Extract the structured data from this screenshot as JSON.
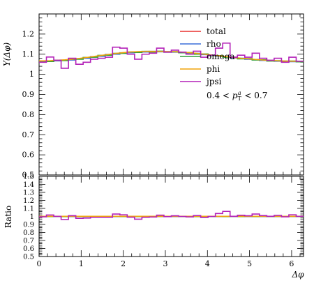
{
  "chart_data": [
    {
      "type": "line",
      "panel": "main",
      "ylabel": "Y(Δφ)",
      "xlim": [
        0,
        6.283
      ],
      "ylim": [
        0.5,
        1.3
      ],
      "yticks": [
        "0.5",
        "0.6",
        "0.7",
        "0.8",
        "0.9",
        "1",
        "1.1",
        "1.2"
      ],
      "legend_position": "top-right",
      "annotation": "0.4 < p_T^a < 0.7",
      "bins": 36,
      "series": [
        {
          "name": "total",
          "color": "#e8312f",
          "step": false,
          "values": [
            1.065,
            1.066,
            1.068,
            1.07,
            1.073,
            1.077,
            1.082,
            1.087,
            1.092,
            1.097,
            1.102,
            1.106,
            1.109,
            1.111,
            1.112,
            1.113,
            1.113,
            1.112,
            1.111,
            1.109,
            1.106,
            1.103,
            1.099,
            1.095,
            1.091,
            1.087,
            1.083,
            1.079,
            1.076,
            1.073,
            1.07,
            1.068,
            1.066,
            1.065,
            1.064,
            1.064
          ]
        },
        {
          "name": "rho",
          "color": "#3a6fd8",
          "step": true,
          "values": [
            1.063,
            1.066,
            1.067,
            1.07,
            1.071,
            1.078,
            1.08,
            1.088,
            1.09,
            1.099,
            1.1,
            1.107,
            1.107,
            1.112,
            1.111,
            1.114,
            1.112,
            1.113,
            1.11,
            1.11,
            1.105,
            1.104,
            1.098,
            1.096,
            1.09,
            1.088,
            1.082,
            1.08,
            1.075,
            1.074,
            1.069,
            1.069,
            1.065,
            1.066,
            1.063,
            1.065
          ]
        },
        {
          "name": "omega",
          "color": "#2e9e3a",
          "step": true,
          "values": [
            1.066,
            1.064,
            1.07,
            1.068,
            1.075,
            1.075,
            1.084,
            1.085,
            1.094,
            1.095,
            1.104,
            1.104,
            1.111,
            1.109,
            1.114,
            1.111,
            1.115,
            1.11,
            1.113,
            1.107,
            1.108,
            1.1,
            1.101,
            1.093,
            1.093,
            1.085,
            1.085,
            1.077,
            1.078,
            1.071,
            1.072,
            1.066,
            1.068,
            1.063,
            1.066,
            1.062
          ]
        },
        {
          "name": "phi",
          "color": "#f0a30a",
          "step": false,
          "values": [
            1.067,
            1.068,
            1.07,
            1.072,
            1.075,
            1.079,
            1.084,
            1.089,
            1.094,
            1.099,
            1.104,
            1.108,
            1.111,
            1.113,
            1.114,
            1.114,
            1.114,
            1.113,
            1.112,
            1.11,
            1.107,
            1.104,
            1.1,
            1.096,
            1.092,
            1.088,
            1.084,
            1.08,
            1.077,
            1.074,
            1.071,
            1.069,
            1.067,
            1.066,
            1.065,
            1.065
          ]
        },
        {
          "name": "jpsi",
          "color": "#b321b8",
          "step": true,
          "values": [
            1.06,
            1.086,
            1.07,
            1.03,
            1.08,
            1.05,
            1.06,
            1.075,
            1.08,
            1.085,
            1.135,
            1.13,
            1.1,
            1.075,
            1.1,
            1.105,
            1.13,
            1.11,
            1.12,
            1.11,
            1.1,
            1.115,
            1.085,
            1.095,
            1.13,
            1.155,
            1.085,
            1.095,
            1.085,
            1.105,
            1.08,
            1.07,
            1.08,
            1.06,
            1.085,
            1.065
          ]
        }
      ]
    },
    {
      "type": "line",
      "panel": "ratio",
      "ylabel": "Ratio",
      "xlabel": "Δφ",
      "xlim": [
        0,
        6.283
      ],
      "ylim": [
        0.5,
        1.5
      ],
      "xticks": [
        "0",
        "1",
        "2",
        "3",
        "4",
        "5",
        "6"
      ],
      "yticks": [
        "0.5",
        "0.6",
        "0.7",
        "0.8",
        "0.9",
        "1",
        "1.1",
        "1.2",
        "1.3",
        "1.4",
        "1.5"
      ],
      "series": [
        {
          "name": "total",
          "color": "#e8312f",
          "step": false,
          "values": [
            1,
            1,
            1,
            1,
            1,
            1,
            1,
            1,
            1,
            1,
            1,
            1,
            1,
            1,
            1,
            1,
            1,
            1,
            1,
            1,
            1,
            1,
            1,
            1,
            1,
            1,
            1,
            1,
            1,
            1,
            1,
            1,
            1,
            1,
            1,
            1
          ]
        },
        {
          "name": "rho",
          "color": "#3a6fd8",
          "step": true,
          "values": [
            0.998,
            1,
            0.999,
            1,
            0.998,
            1.001,
            0.998,
            1.001,
            0.998,
            1.002,
            0.998,
            1.001,
            0.998,
            1.001,
            0.999,
            1.001,
            0.999,
            1.001,
            0.999,
            1.001,
            0.999,
            1.001,
            0.999,
            1.001,
            0.999,
            1.001,
            0.999,
            1.001,
            0.999,
            1.001,
            0.999,
            1.001,
            0.999,
            1.001,
            0.999,
            1.001
          ]
        },
        {
          "name": "omega",
          "color": "#2e9e3a",
          "step": true,
          "values": [
            1.001,
            0.998,
            1.002,
            0.998,
            1.002,
            0.998,
            1.002,
            0.998,
            1.002,
            0.998,
            1.002,
            0.998,
            1.002,
            0.998,
            1.002,
            0.998,
            1.002,
            0.998,
            1.002,
            0.998,
            1.002,
            0.998,
            1.002,
            0.998,
            1.002,
            0.998,
            1.002,
            0.998,
            1.002,
            0.998,
            1.002,
            0.998,
            1.002,
            0.998,
            1.002,
            0.998
          ]
        },
        {
          "name": "phi",
          "color": "#f0a30a",
          "step": false,
          "values": [
            1.002,
            1.002,
            1.002,
            1.002,
            1.002,
            1.002,
            1.002,
            1.002,
            1.002,
            1.002,
            1.002,
            1.002,
            1.002,
            1.002,
            1.002,
            1.002,
            1.002,
            1.002,
            1.002,
            1.002,
            1.002,
            1.002,
            1.002,
            1.002,
            1.002,
            1.002,
            1.002,
            1.002,
            1.002,
            1.002,
            1.002,
            1.002,
            1.002,
            1.002,
            1.002,
            1.002
          ]
        },
        {
          "name": "jpsi",
          "color": "#b321b8",
          "step": true,
          "values": [
            0.995,
            1.018,
            1.001,
            0.962,
            1.009,
            0.976,
            0.98,
            0.989,
            0.989,
            0.989,
            1.03,
            1.02,
            0.991,
            0.966,
            0.99,
            0.993,
            1.016,
            0.997,
            1.008,
            1.0,
            0.994,
            1.011,
            0.987,
            1.0,
            1.036,
            1.063,
            1.002,
            1.015,
            1.008,
            1.03,
            1.01,
            1.002,
            1.013,
            0.995,
            1.02,
            1.001
          ]
        }
      ]
    }
  ]
}
